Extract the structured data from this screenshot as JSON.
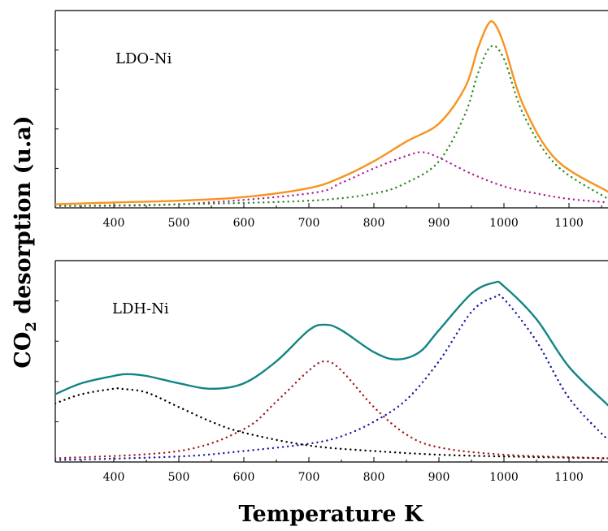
{
  "chart_data": [
    {
      "type": "line",
      "annotation": "LDO-Ni",
      "xlabel": "Temperature K",
      "ylabel": "CO2 desorption (u.a)",
      "xlim": [
        310,
        1160
      ],
      "ylim": [
        0,
        1.1
      ],
      "x_ticks": [
        400,
        500,
        600,
        700,
        800,
        900,
        1000,
        1100
      ],
      "grid": false,
      "y_tick_labels_shown": false,
      "series": [
        {
          "style": "solid",
          "color": "#f7931e",
          "x": [
            310,
            400,
            500,
            600,
            700,
            750,
            800,
            850,
            900,
            940,
            960,
            975,
            985,
            1000,
            1030,
            1080,
            1160
          ],
          "y": [
            0.02,
            0.03,
            0.04,
            0.06,
            0.11,
            0.17,
            0.26,
            0.37,
            0.47,
            0.67,
            0.89,
            1.02,
            1.03,
            0.91,
            0.57,
            0.27,
            0.09
          ]
        },
        {
          "style": "dotted",
          "color": "#b0199e",
          "x": [
            310,
            500,
            700,
            750,
            800,
            850,
            875,
            900,
            950,
            1000,
            1050,
            1100,
            1160
          ],
          "y": [
            0.01,
            0.02,
            0.08,
            0.14,
            0.22,
            0.29,
            0.31,
            0.28,
            0.19,
            0.12,
            0.08,
            0.05,
            0.03
          ]
        },
        {
          "style": "dotted",
          "color": "#2b8a1c",
          "x": [
            310,
            500,
            700,
            800,
            850,
            900,
            940,
            960,
            980,
            1000,
            1030,
            1080,
            1160
          ],
          "y": [
            0.01,
            0.02,
            0.04,
            0.08,
            0.14,
            0.26,
            0.52,
            0.75,
            0.9,
            0.83,
            0.52,
            0.24,
            0.05
          ]
        }
      ]
    },
    {
      "type": "line",
      "annotation": "LDH-Ni",
      "xlabel": "Temperature K",
      "ylabel": "CO2 desorption (u.a)",
      "xlim": [
        310,
        1160
      ],
      "ylim": [
        0,
        1.1
      ],
      "x_ticks": [
        400,
        500,
        600,
        700,
        800,
        900,
        1000,
        1100
      ],
      "grid": false,
      "y_tick_labels_shown": false,
      "series": [
        {
          "style": "solid",
          "color": "#138484",
          "x": [
            310,
            350,
            400,
            420,
            450,
            500,
            550,
            600,
            650,
            700,
            725,
            750,
            800,
            835,
            870,
            900,
            950,
            985,
            1000,
            1050,
            1100,
            1160
          ],
          "y": [
            0.37,
            0.43,
            0.47,
            0.48,
            0.47,
            0.43,
            0.4,
            0.43,
            0.55,
            0.72,
            0.75,
            0.72,
            0.6,
            0.56,
            0.6,
            0.72,
            0.92,
            0.98,
            0.96,
            0.78,
            0.52,
            0.31
          ]
        },
        {
          "style": "dotted",
          "color": "#000000",
          "x": [
            310,
            350,
            400,
            410,
            450,
            500,
            550,
            600,
            700,
            800,
            900,
            1000,
            1160
          ],
          "y": [
            0.32,
            0.37,
            0.4,
            0.4,
            0.38,
            0.3,
            0.22,
            0.16,
            0.09,
            0.06,
            0.04,
            0.03,
            0.02
          ]
        },
        {
          "style": "dotted",
          "color": "#a61a1a",
          "x": [
            310,
            500,
            600,
            650,
            700,
            725,
            750,
            800,
            850,
            900,
            1000,
            1160
          ],
          "y": [
            0.02,
            0.06,
            0.18,
            0.33,
            0.5,
            0.55,
            0.5,
            0.3,
            0.15,
            0.08,
            0.04,
            0.02
          ]
        },
        {
          "style": "dotted",
          "color": "#1a1aa6",
          "x": [
            310,
            500,
            600,
            700,
            750,
            800,
            850,
            900,
            950,
            985,
            1000,
            1050,
            1100,
            1160
          ],
          "y": [
            0.01,
            0.03,
            0.06,
            0.1,
            0.14,
            0.22,
            0.34,
            0.55,
            0.82,
            0.9,
            0.89,
            0.66,
            0.35,
            0.12
          ]
        }
      ]
    }
  ]
}
